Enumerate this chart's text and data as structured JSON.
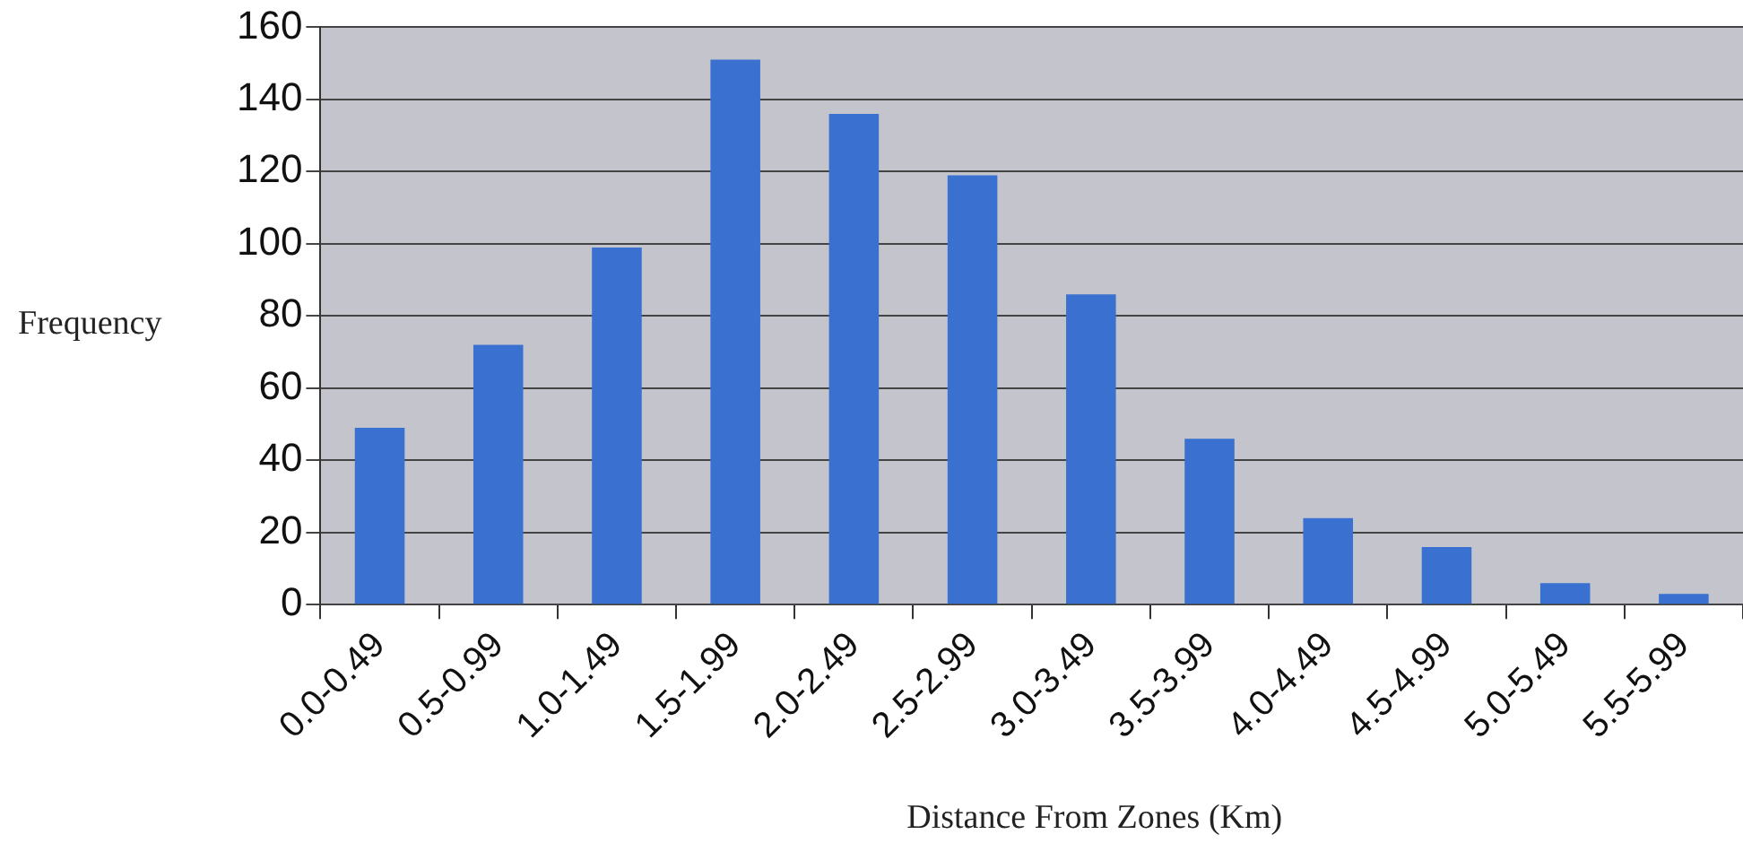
{
  "chart_data": {
    "type": "bar",
    "xlabel": "Distance From Zones (Km)",
    "ylabel": "Frequency",
    "categories": [
      "0.0-0.49",
      "0.5-0.99",
      "1.0-1.49",
      "1.5-1.99",
      "2.0-2.49",
      "2.5-2.99",
      "3.0-3.49",
      "3.5-3.99",
      "4.0-4.49",
      "4.5-4.99",
      "5.0-5.49",
      "5.5-5.99"
    ],
    "values": [
      49,
      72,
      99,
      151,
      136,
      119,
      86,
      46,
      24,
      16,
      6,
      3
    ],
    "color": "#3a70d0",
    "ylim": [
      0,
      160
    ],
    "yticks": [
      0,
      20,
      40,
      60,
      80,
      100,
      120,
      140,
      160
    ],
    "grid": "y"
  }
}
